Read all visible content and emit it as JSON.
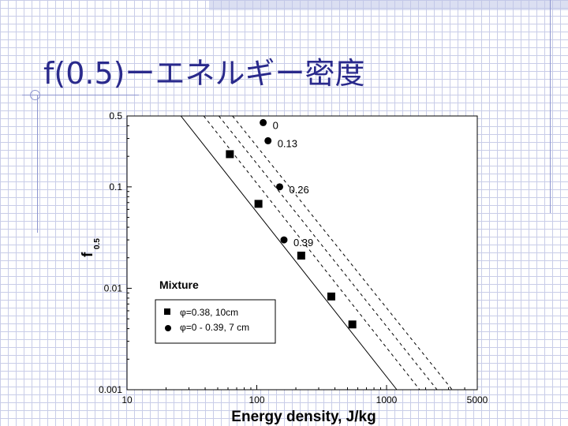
{
  "slide": {
    "title": "f(0.5)ーエネルギー密度"
  },
  "colors": {
    "title": "#2a2a8c",
    "deco_line": "#8e95cf",
    "grid": "#c9cde8"
  },
  "chart_data": {
    "type": "scatter",
    "title": "",
    "xlabel": "Energy density,  J/kg",
    "ylabel_main": "f",
    "ylabel_sub": "0.5",
    "xscale": "log",
    "yscale": "log",
    "xlim": [
      10,
      5000
    ],
    "ylim": [
      0.001,
      0.5
    ],
    "x_ticks": [
      10,
      100,
      1000,
      5000
    ],
    "x_tick_labels": [
      "10",
      "100",
      "1000",
      "5000"
    ],
    "y_ticks": [
      0.001,
      0.01,
      0.1,
      0.5
    ],
    "y_tick_labels": [
      "0.001",
      "0.01",
      "0.1",
      "0.5"
    ],
    "grid": false,
    "series": [
      {
        "name": "φ=0.38, 10cm",
        "marker": "square",
        "points": [
          [
            62,
            0.21
          ],
          [
            103,
            0.068
          ],
          [
            220,
            0.021
          ],
          [
            375,
            0.0083
          ],
          [
            545,
            0.0044
          ]
        ]
      },
      {
        "name": "φ=0 - 0.39, 7 cm",
        "marker": "circle",
        "points": [
          [
            112,
            0.43
          ],
          [
            122,
            0.285
          ],
          [
            150,
            0.1
          ],
          [
            162,
            0.03
          ]
        ]
      }
    ],
    "fit_lines": [
      {
        "style": "solid",
        "points": [
          [
            26,
            0.5
          ],
          [
            1200,
            0.001
          ]
        ]
      },
      {
        "style": "dashed",
        "points": [
          [
            39,
            0.5
          ],
          [
            1800,
            0.001
          ]
        ]
      },
      {
        "style": "dashed",
        "points": [
          [
            51,
            0.5
          ],
          [
            2450,
            0.001
          ]
        ]
      },
      {
        "style": "dashed",
        "points": [
          [
            65,
            0.5
          ],
          [
            3200,
            0.001
          ]
        ]
      }
    ],
    "annotations": [
      {
        "text": "0",
        "x": 112,
        "y": 0.43
      },
      {
        "text": "0.13",
        "x": 122,
        "y": 0.285
      },
      {
        "text": "0.26",
        "x": 150,
        "y": 0.1
      },
      {
        "text": "0.39",
        "x": 162,
        "y": 0.03
      }
    ],
    "legend": {
      "title": "Mixture",
      "placement": "bottom-left",
      "entries": [
        "φ=0.38, 10cm",
        "φ=0 - 0.39, 7 cm"
      ]
    }
  }
}
